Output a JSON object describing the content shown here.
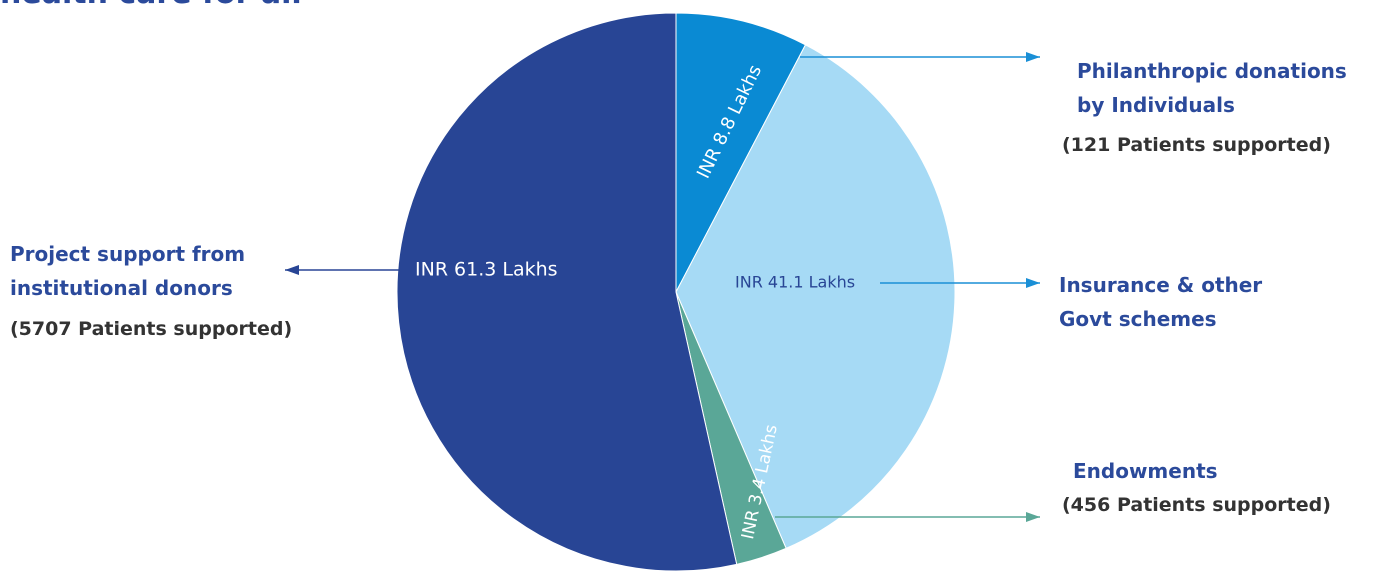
{
  "chart_data": {
    "type": "pie",
    "title": "health care for all",
    "categories": [
      "Philanthropic donations by Individuals",
      "Insurance & other Govt schemes",
      "Endowments",
      "Project support from institutional donors"
    ],
    "values": [
      8.8,
      41.1,
      3.4,
      61.3
    ],
    "value_labels": [
      "INR 8.8 Lakhs",
      "INR 41.1 Lakhs",
      "INR 3.4 Lakhs",
      "INR 61.3 Lakhs"
    ],
    "colors": [
      "#0a8ad3",
      "#a6daf5",
      "#5aa797",
      "#284595"
    ],
    "annotations": [
      "(121 Patients supported)",
      "(456 Patients supported)",
      "(5707 Patients supported)"
    ]
  }
}
